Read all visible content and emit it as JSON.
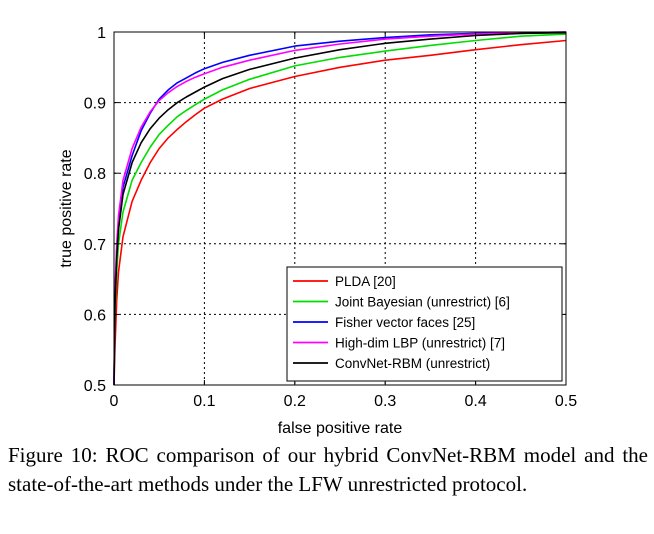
{
  "chart_data": {
    "type": "line",
    "title": "",
    "xlabel": "false positive rate",
    "ylabel": "true positive rate",
    "xlim": [
      0,
      0.5
    ],
    "ylim": [
      0.5,
      1.0
    ],
    "xticks": [
      0,
      0.1,
      0.2,
      0.3,
      0.4,
      0.5
    ],
    "xtick_labels": [
      "0",
      "0.1",
      "0.2",
      "0.3",
      "0.4",
      "0.5"
    ],
    "yticks": [
      0.5,
      0.6,
      0.7,
      0.8,
      0.9,
      1.0
    ],
    "ytick_labels": [
      "0.5",
      "0.6",
      "0.7",
      "0.8",
      "0.9",
      "1"
    ],
    "grid": true,
    "legend_position": "bottom-right",
    "series": [
      {
        "name": "PLDA [20]",
        "color": "#ff0000",
        "x": [
          0,
          0.001,
          0.003,
          0.005,
          0.01,
          0.02,
          0.03,
          0.04,
          0.05,
          0.06,
          0.07,
          0.08,
          0.09,
          0.1,
          0.12,
          0.15,
          0.2,
          0.25,
          0.3,
          0.35,
          0.4,
          0.45,
          0.5
        ],
        "y": [
          0.5,
          0.55,
          0.62,
          0.66,
          0.71,
          0.76,
          0.79,
          0.815,
          0.835,
          0.85,
          0.862,
          0.873,
          0.883,
          0.892,
          0.905,
          0.92,
          0.937,
          0.95,
          0.96,
          0.967,
          0.975,
          0.982,
          0.988
        ]
      },
      {
        "name": "Joint Bayesian (unrestrict) [6]",
        "color": "#00dd00",
        "x": [
          0,
          0.001,
          0.003,
          0.005,
          0.01,
          0.02,
          0.03,
          0.04,
          0.05,
          0.06,
          0.07,
          0.08,
          0.09,
          0.1,
          0.12,
          0.15,
          0.2,
          0.25,
          0.3,
          0.35,
          0.4,
          0.45,
          0.5
        ],
        "y": [
          0.5,
          0.6,
          0.66,
          0.7,
          0.745,
          0.79,
          0.815,
          0.837,
          0.855,
          0.868,
          0.88,
          0.889,
          0.897,
          0.905,
          0.918,
          0.933,
          0.952,
          0.964,
          0.973,
          0.981,
          0.988,
          0.994,
          0.997
        ]
      },
      {
        "name": "Fisher vector faces [25]",
        "color": "#0000ff",
        "x": [
          0,
          0.001,
          0.003,
          0.005,
          0.01,
          0.02,
          0.03,
          0.04,
          0.05,
          0.06,
          0.07,
          0.08,
          0.09,
          0.1,
          0.12,
          0.15,
          0.2,
          0.25,
          0.3,
          0.35,
          0.4,
          0.45,
          0.5
        ],
        "y": [
          0.5,
          0.62,
          0.69,
          0.73,
          0.78,
          0.825,
          0.86,
          0.885,
          0.905,
          0.918,
          0.928,
          0.935,
          0.942,
          0.948,
          0.957,
          0.967,
          0.98,
          0.987,
          0.992,
          0.996,
          0.998,
          0.999,
          1.0
        ]
      },
      {
        "name": "High-dim LBP (unrestrict) [7]",
        "color": "#ff00ff",
        "x": [
          0,
          0.001,
          0.003,
          0.005,
          0.01,
          0.02,
          0.03,
          0.04,
          0.05,
          0.06,
          0.07,
          0.08,
          0.09,
          0.1,
          0.12,
          0.15,
          0.2,
          0.25,
          0.3,
          0.35,
          0.4,
          0.45,
          0.5
        ],
        "y": [
          0.5,
          0.63,
          0.7,
          0.74,
          0.79,
          0.835,
          0.865,
          0.887,
          0.903,
          0.914,
          0.923,
          0.93,
          0.936,
          0.941,
          0.95,
          0.96,
          0.974,
          0.983,
          0.99,
          0.994,
          0.997,
          0.999,
          1.0
        ]
      },
      {
        "name": "ConvNet-RBM (unrestrict)",
        "color": "#000000",
        "x": [
          0,
          0.001,
          0.003,
          0.005,
          0.01,
          0.02,
          0.03,
          0.04,
          0.05,
          0.06,
          0.07,
          0.08,
          0.09,
          0.1,
          0.12,
          0.15,
          0.2,
          0.25,
          0.3,
          0.35,
          0.4,
          0.45,
          0.5
        ],
        "y": [
          0.5,
          0.61,
          0.68,
          0.72,
          0.77,
          0.815,
          0.843,
          0.863,
          0.878,
          0.89,
          0.9,
          0.908,
          0.915,
          0.922,
          0.934,
          0.947,
          0.963,
          0.975,
          0.984,
          0.99,
          0.995,
          0.998,
          0.999
        ]
      }
    ]
  },
  "caption": "Figure 10: ROC comparison of our hybrid ConvNet-RBM model and the state-of-the-art methods under the LFW unrestricted protocol."
}
